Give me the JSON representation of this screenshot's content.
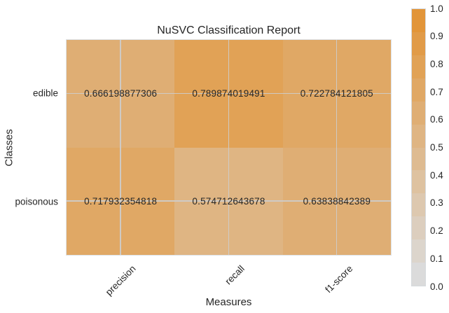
{
  "figure": {
    "background": "#ffffff",
    "text_color": "#262626"
  },
  "chart_data": {
    "type": "heatmap",
    "title": "NuSVC Classification Report",
    "xlabel": "Measures",
    "ylabel": "Classes",
    "x_categories": [
      "precision",
      "recall",
      "f1-score"
    ],
    "y_categories": [
      "edible",
      "poisonous"
    ],
    "rows": [
      {
        "class": "edible",
        "values": [
          0.666198877306,
          0.789874019491,
          0.722784121805
        ],
        "display_values": [
          "0.666198877306",
          "0.789874019491",
          "0.722784121805"
        ],
        "cell_colors": [
          "#DFAE74",
          "#E1A256",
          "#E0A865"
        ]
      },
      {
        "class": "poisonous",
        "values": [
          0.717932354818,
          0.574712643678,
          0.63838842389
        ],
        "display_values": [
          "0.717932354818",
          "0.574712643678",
          "0.63838842389"
        ],
        "cell_colors": [
          "#E0A865",
          "#DFB583",
          "#DFAE74"
        ]
      }
    ],
    "value_range": [
      0.0,
      1.0
    ],
    "grid": true,
    "gridline_color": "#cdcdcd",
    "colorbar": {
      "position": "right",
      "tick_labels": [
        "1.0",
        "0.9",
        "0.8",
        "0.7",
        "0.6",
        "0.5",
        "0.4",
        "0.3",
        "0.2",
        "0.1",
        "0.0"
      ],
      "colors_bottom_to_top": [
        "#DBDBDB",
        "#DCD5CC",
        "#DCCEBE",
        "#DDC8AF",
        "#DEC2A0",
        "#DEBB91",
        "#DFB583",
        "#DFAE74",
        "#E0A865",
        "#E1A256",
        "#E19B48",
        "#E29539"
      ]
    }
  }
}
